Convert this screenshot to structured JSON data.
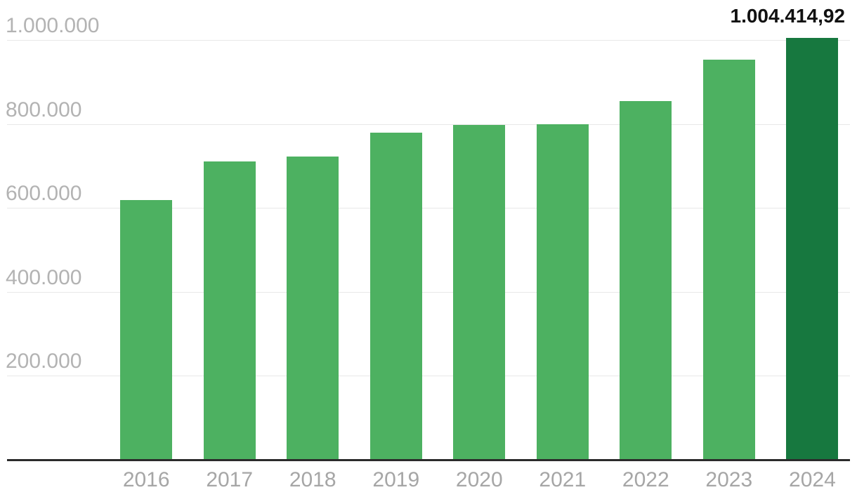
{
  "colors": {
    "bar": "#4db161",
    "bar_highlight": "#17783f",
    "axis_line": "#2b2b2b",
    "gridline": "#e8e8e8",
    "y_label_text": "#b3b3b3",
    "x_label_text": "#a6a6a6",
    "value_label_text": "#111111",
    "background": "#ffffff"
  },
  "chart_data": {
    "type": "bar",
    "title": "",
    "xlabel": "",
    "ylabel": "",
    "categories": [
      "2016",
      "2017",
      "2018",
      "2019",
      "2020",
      "2021",
      "2022",
      "2023",
      "2024"
    ],
    "values": [
      618000,
      710000,
      723000,
      779000,
      797000,
      799000,
      855000,
      953000,
      1004414.92
    ],
    "highlighted_category": "2024",
    "value_label": {
      "text": "1.004.414,92",
      "category": "2024"
    },
    "y_ticks": [
      {
        "value": 200000,
        "label": "200.000"
      },
      {
        "value": 400000,
        "label": "400.000"
      },
      {
        "value": 600000,
        "label": "600.000"
      },
      {
        "value": 800000,
        "label": "800.000"
      },
      {
        "value": 1000000,
        "label": "1.000.000"
      }
    ],
    "ylim": [
      0,
      1010000
    ],
    "grid": true,
    "legend_position": "none"
  }
}
